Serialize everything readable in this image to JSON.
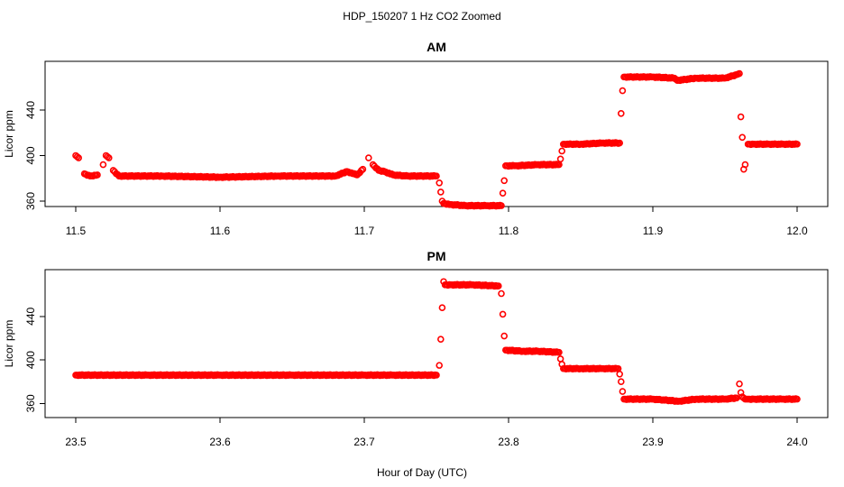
{
  "figure": {
    "title": "HDP_150207  1 Hz CO2 Zoomed",
    "xlabel": "Hour of Day (UTC)"
  },
  "colors": {
    "points": "#ff0000",
    "axis": "#000000"
  },
  "chart_data": [
    {
      "type": "scatter",
      "title": "AM",
      "xlabel": "",
      "ylabel": "Licor ppm",
      "xlim": [
        11.5,
        12.0
      ],
      "ylim": [
        360,
        478
      ],
      "xticks": [
        "11.5",
        "11.6",
        "11.7",
        "11.8",
        "11.9",
        "12.0"
      ],
      "yticks": [
        "360",
        "400",
        "440"
      ],
      "grid": false,
      "marker": "open-circle",
      "series": [
        {
          "x": [
            11.5,
            11.502,
            11.506,
            11.51,
            11.515,
            11.519,
            11.521,
            11.523,
            11.526,
            11.53,
            11.56,
            11.6,
            11.64,
            11.68,
            11.688,
            11.695,
            11.699,
            11.703,
            11.706,
            11.71,
            11.714,
            11.72,
            11.73,
            11.75,
            11.752,
            11.753,
            11.754,
            11.755,
            11.76,
            11.77,
            11.785,
            11.795,
            11.796,
            11.797,
            11.798,
            11.805,
            11.82,
            11.835,
            11.836,
            11.837,
            11.838,
            11.85,
            11.865,
            11.877,
            11.878,
            11.879,
            11.88,
            11.9,
            11.915,
            11.917,
            11.93,
            11.95,
            11.958,
            11.96,
            11.961,
            11.962,
            11.963,
            11.964,
            11.966,
            11.97,
            11.98,
            11.99,
            12.0
          ],
          "y": [
            400,
            398,
            384,
            382,
            383,
            392,
            400,
            398,
            387,
            382,
            382,
            381,
            382,
            382,
            386,
            383,
            388,
            398,
            392,
            387,
            386,
            383,
            382,
            382,
            376,
            368,
            360,
            358,
            357,
            356,
            356,
            356,
            367,
            378,
            391,
            391,
            392,
            392,
            397,
            404,
            410,
            410,
            411,
            411,
            437,
            457,
            469,
            469,
            468,
            466,
            468,
            468,
            471,
            472,
            434,
            416,
            388,
            392,
            410,
            410,
            410,
            410,
            410
          ]
        }
      ]
    },
    {
      "type": "scatter",
      "title": "PM",
      "xlabel": "",
      "ylabel": "Licor ppm",
      "xlim": [
        23.5,
        24.0
      ],
      "ylim": [
        352,
        478
      ],
      "xticks": [
        "23.5",
        "23.6",
        "23.7",
        "23.8",
        "23.9",
        "24.0"
      ],
      "yticks": [
        "360",
        "400",
        "440"
      ],
      "grid": false,
      "marker": "open-circle",
      "series": [
        {
          "x": [
            23.5,
            23.55,
            23.6,
            23.65,
            23.7,
            23.72,
            23.75,
            23.752,
            23.753,
            23.754,
            23.755,
            23.756,
            23.76,
            23.775,
            23.793,
            23.795,
            23.796,
            23.797,
            23.798,
            23.81,
            23.82,
            23.835,
            23.836,
            23.837,
            23.838,
            23.85,
            23.865,
            23.876,
            23.877,
            23.878,
            23.879,
            23.88,
            23.9,
            23.918,
            23.93,
            23.95,
            23.958,
            23.96,
            23.961,
            23.962,
            23.964,
            23.966,
            23.97,
            23.99,
            24.0
          ],
          "y": [
            386,
            386,
            386,
            386,
            386,
            386,
            386,
            395,
            419,
            448,
            472,
            469,
            469,
            469,
            468,
            461,
            442,
            422,
            409,
            408,
            408,
            407,
            401,
            396,
            392,
            392,
            392,
            392,
            387,
            380,
            371,
            364,
            364,
            362,
            364,
            364,
            365,
            378,
            370,
            366,
            364,
            364,
            364,
            364,
            364
          ]
        }
      ]
    }
  ]
}
